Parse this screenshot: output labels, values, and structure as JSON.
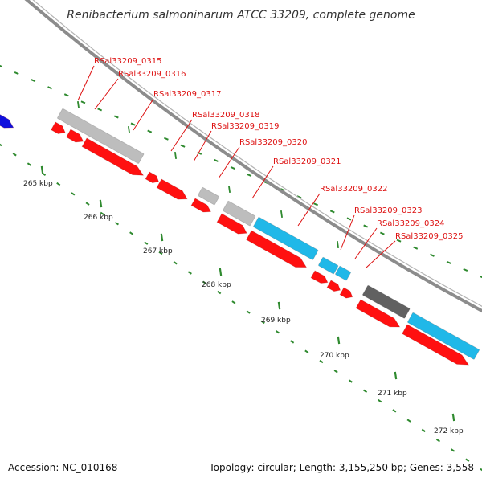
{
  "title": "Renibacterium salmoninarum ATCC 33209, complete genome",
  "footer": {
    "accession": "Accession: NC_010168",
    "summary": "Topology: circular; Length: 3,155,250 bp; Genes: 3,558"
  },
  "colors": {
    "backbone": "#8c8c8c",
    "tick": "#2f8a2f",
    "label": "#dd1111",
    "label_line": "#dd1111",
    "cds": "#ff1010",
    "gene_gray": "#bdbdbd",
    "gene_dark": "#616161",
    "gene_cyan": "#20b8e8",
    "gene_blue": "#1010dd"
  },
  "axis": {
    "unit": "kbp",
    "labels": [
      {
        "value": 265,
        "text": "265 kbp"
      },
      {
        "value": 266,
        "text": "266 kbp"
      },
      {
        "value": 267,
        "text": "267 kbp"
      },
      {
        "value": 268,
        "text": "268 kbp"
      },
      {
        "value": 269,
        "text": "269 kbp"
      },
      {
        "value": 270,
        "text": "270 kbp"
      },
      {
        "value": 271,
        "text": "271 kbp"
      },
      {
        "value": 272,
        "text": "272 kbp"
      }
    ]
  },
  "gene_labels": [
    "RSal33209_0315",
    "RSal33209_0316",
    "RSal33209_0317",
    "RSal33209_0318",
    "RSal33209_0319",
    "RSal33209_0320",
    "RSal33209_0321",
    "RSal33209_0322",
    "RSal33209_0323",
    "RSal33209_0324",
    "RSal33209_0325"
  ]
}
